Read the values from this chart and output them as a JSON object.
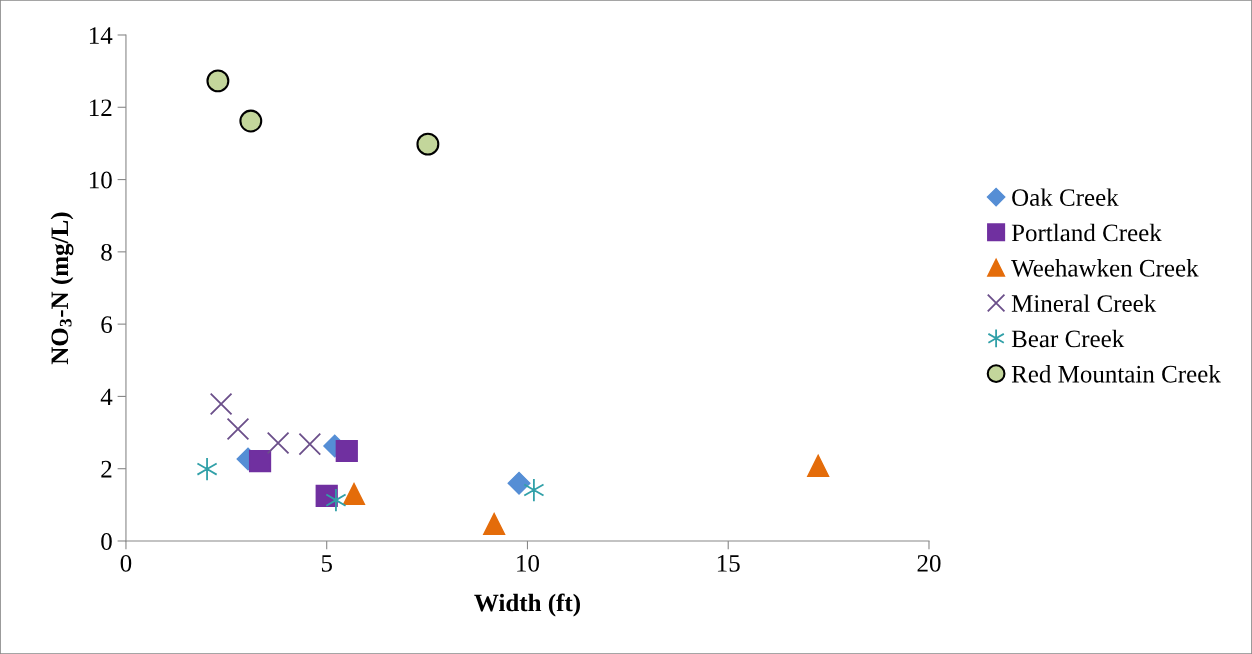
{
  "chart_data": {
    "type": "scatter",
    "xlabel": "Width (ft)",
    "ylabel": "NO$_{3}$-N (mg/L)",
    "xlim": [
      0,
      20
    ],
    "xticks": [
      0,
      5,
      10,
      15,
      20
    ],
    "ylim": [
      0,
      14
    ],
    "yticks": [
      0,
      2,
      4,
      6,
      8,
      10,
      12,
      14
    ],
    "grid": false,
    "legend": "right",
    "series": [
      {
        "name": "Oak Creek",
        "color": "#558ed5",
        "marker": "diamond",
        "x": [
          3.04,
          5.2,
          9.79
        ],
        "values": [
          2.27,
          2.63,
          1.6
        ]
      },
      {
        "name": "Portland Creek",
        "color": "#7030a0",
        "marker": "square",
        "x": [
          3.34,
          5.5,
          5.0
        ],
        "values": [
          2.21,
          2.49,
          1.25
        ]
      },
      {
        "name": "Weehawken Creek",
        "color": "#e46c0a",
        "marker": "triangle",
        "x": [
          5.68,
          9.17,
          17.24
        ],
        "values": [
          1.3,
          0.47,
          2.08
        ]
      },
      {
        "name": "Mineral Creek",
        "color": "#6b4f8a",
        "marker": "cross",
        "x": [
          2.37,
          2.79,
          3.79,
          4.58
        ],
        "values": [
          3.79,
          3.1,
          2.71,
          2.68
        ]
      },
      {
        "name": "Bear Creek",
        "color": "#31a0a8",
        "x": [
          2.02,
          5.23,
          10.16
        ],
        "values": [
          1.99,
          1.13,
          1.41
        ]
      },
      {
        "name": "Red Mountain Creek",
        "color": "#c3d69b",
        "marker": "circle",
        "x": [
          2.29,
          3.11,
          7.52
        ],
        "values": [
          12.73,
          11.62,
          10.98
        ]
      }
    ]
  }
}
